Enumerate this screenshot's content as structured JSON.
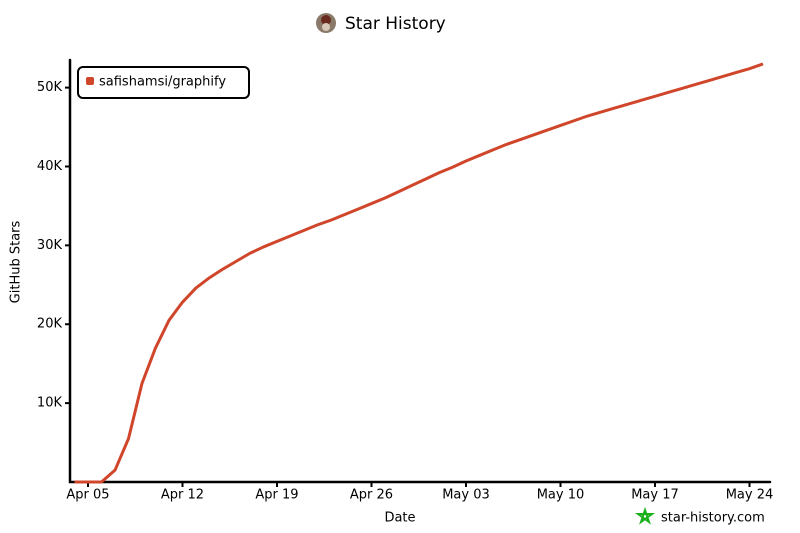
{
  "chart_data": {
    "type": "line",
    "title": "Star History",
    "x_label": "Date",
    "y_label": "GitHub Stars",
    "footer": "star-history.com",
    "x": [
      "Apr 04",
      "Apr 05",
      "Apr 06",
      "Apr 07",
      "Apr 08",
      "Apr 09",
      "Apr 10",
      "Apr 11",
      "Apr 12",
      "Apr 13",
      "Apr 14",
      "Apr 15",
      "Apr 16",
      "Apr 17",
      "Apr 18",
      "Apr 19",
      "Apr 20",
      "Apr 21",
      "Apr 22",
      "Apr 23",
      "Apr 24",
      "Apr 25",
      "Apr 26",
      "Apr 27",
      "Apr 28",
      "Apr 29",
      "Apr 30",
      "May 01",
      "May 02",
      "May 03",
      "May 04",
      "May 05",
      "May 06",
      "May 07",
      "May 08",
      "May 09",
      "May 10",
      "May 11",
      "May 12",
      "May 13",
      "May 14",
      "May 15",
      "May 16",
      "May 17",
      "May 18",
      "May 19",
      "May 20",
      "May 21",
      "May 22",
      "May 23",
      "May 24",
      "May 25"
    ],
    "series": [
      {
        "name": "safishamsi/graphify",
        "color": "#d0462b",
        "values": [
          0,
          0,
          0,
          1500,
          5500,
          12500,
          17000,
          20500,
          22800,
          24600,
          25900,
          27000,
          28000,
          29000,
          29800,
          30500,
          31200,
          31900,
          32600,
          33200,
          33900,
          34600,
          35300,
          36000,
          36800,
          37600,
          38400,
          39200,
          39900,
          40700,
          41400,
          42100,
          42800,
          43400,
          44000,
          44600,
          45200,
          45800,
          46400,
          46900,
          47400,
          47900,
          48400,
          48900,
          49400,
          49900,
          50400,
          50900,
          51400,
          51900,
          52400,
          53000
        ]
      }
    ],
    "xticks": [
      "Apr 05",
      "Apr 12",
      "Apr 19",
      "Apr 26",
      "May 03",
      "May 10",
      "May 17",
      "May 24"
    ],
    "ylim": [
      0,
      53500
    ],
    "yticks": [
      {
        "value": 10000,
        "label": "10K"
      },
      {
        "value": 20000,
        "label": "20K"
      },
      {
        "value": 30000,
        "label": "30K"
      },
      {
        "value": 40000,
        "label": "40K"
      },
      {
        "value": 50000,
        "label": "50K"
      }
    ],
    "legend": "top-left",
    "grid": false
  }
}
